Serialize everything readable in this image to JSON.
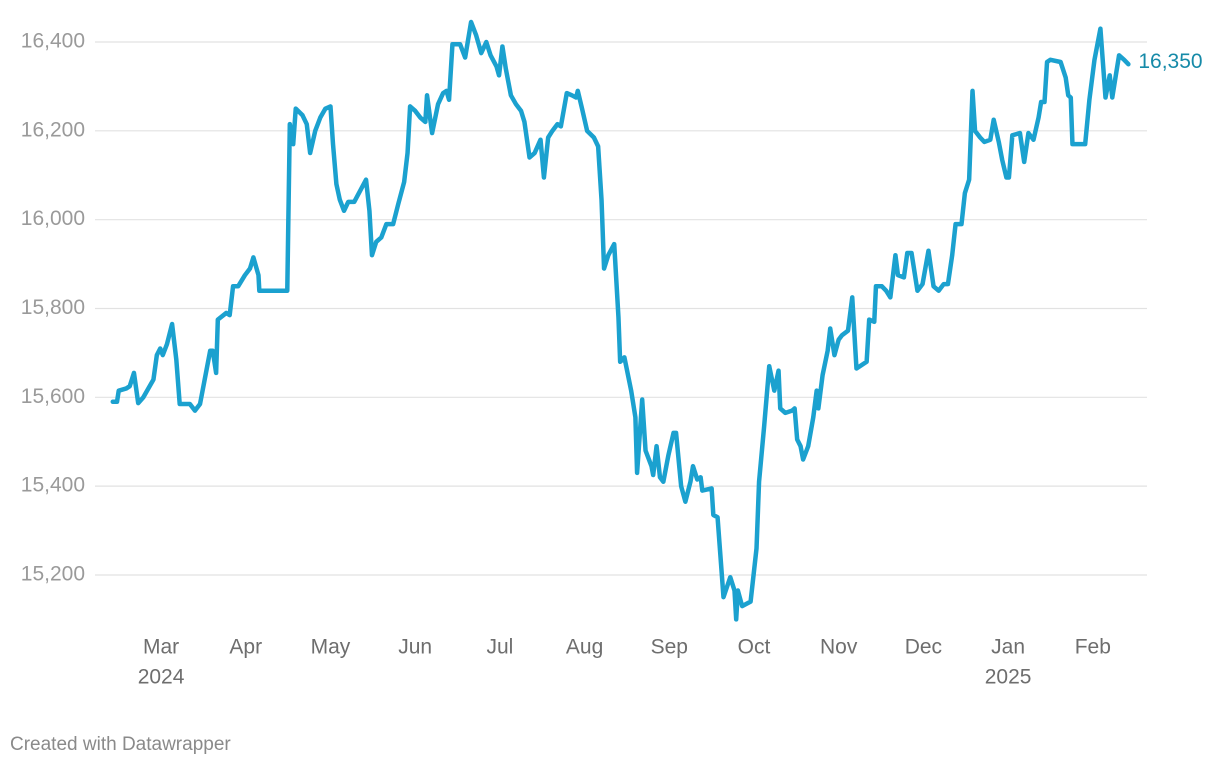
{
  "chart_data": {
    "type": "line",
    "color": "#1ba1cf",
    "end_label_color": "#168aa8",
    "grid": true,
    "footer": "Created with Datawrapper",
    "ylim": [
      15100,
      16450
    ],
    "yticks": [
      {
        "value": 15200,
        "label": "15,200"
      },
      {
        "value": 15400,
        "label": "15,400"
      },
      {
        "value": 15600,
        "label": "15,600"
      },
      {
        "value": 15800,
        "label": "15,800"
      },
      {
        "value": 16000,
        "label": "16,000"
      },
      {
        "value": 16200,
        "label": "16,200"
      },
      {
        "value": 16400,
        "label": "16,400"
      }
    ],
    "xlim": [
      1.22,
      13.64
    ],
    "xticks": [
      {
        "value": 2,
        "label": "Mar"
      },
      {
        "value": 3,
        "label": "Apr"
      },
      {
        "value": 4,
        "label": "May"
      },
      {
        "value": 5,
        "label": "Jun"
      },
      {
        "value": 6,
        "label": "Jul"
      },
      {
        "value": 7,
        "label": "Aug"
      },
      {
        "value": 8,
        "label": "Sep"
      },
      {
        "value": 9,
        "label": "Oct"
      },
      {
        "value": 10,
        "label": "Nov"
      },
      {
        "value": 11,
        "label": "Dec"
      },
      {
        "value": 12,
        "label": "Jan"
      },
      {
        "value": 13,
        "label": "Feb"
      }
    ],
    "year_labels": [
      {
        "value": 2,
        "label": "2024"
      },
      {
        "value": 12,
        "label": "2025"
      }
    ],
    "end_label": "16,350",
    "x": [
      1.43,
      1.48,
      1.5,
      1.59,
      1.63,
      1.68,
      1.73,
      1.79,
      1.91,
      1.95,
      1.99,
      2.02,
      2.07,
      2.13,
      2.18,
      2.22,
      2.34,
      2.4,
      2.46,
      2.58,
      2.61,
      2.65,
      2.67,
      2.77,
      2.81,
      2.85,
      2.91,
      2.99,
      3.05,
      3.09,
      3.15,
      3.16,
      3.49,
      3.52,
      3.56,
      3.59,
      3.67,
      3.72,
      3.76,
      3.82,
      3.88,
      3.94,
      4.0,
      4.03,
      4.07,
      4.11,
      4.16,
      4.21,
      4.28,
      4.35,
      4.42,
      4.46,
      4.49,
      4.54,
      4.6,
      4.66,
      4.74,
      4.8,
      4.87,
      4.91,
      4.94,
      5.0,
      5.06,
      5.12,
      5.14,
      5.2,
      5.27,
      5.33,
      5.37,
      5.4,
      5.44,
      5.53,
      5.59,
      5.66,
      5.72,
      5.78,
      5.84,
      5.89,
      5.96,
      5.99,
      6.03,
      6.07,
      6.13,
      6.19,
      6.25,
      6.29,
      6.35,
      6.41,
      6.48,
      6.52,
      6.57,
      6.62,
      6.68,
      6.72,
      6.79,
      6.85,
      6.9,
      6.92,
      6.97,
      7.03,
      7.11,
      7.16,
      7.2,
      7.23,
      7.28,
      7.35,
      7.4,
      7.42,
      7.47,
      7.55,
      7.6,
      7.62,
      7.68,
      7.72,
      7.79,
      7.81,
      7.85,
      7.89,
      7.93,
      7.99,
      8.05,
      8.08,
      8.14,
      8.19,
      8.25,
      8.28,
      8.33,
      8.37,
      8.39,
      8.5,
      8.52,
      8.57,
      8.64,
      8.72,
      8.77,
      8.79,
      8.81,
      8.86,
      8.96,
      9.03,
      9.06,
      9.12,
      9.18,
      9.24,
      9.29,
      9.31,
      9.37,
      9.45,
      9.48,
      9.51,
      9.55,
      9.58,
      9.64,
      9.7,
      9.74,
      9.76,
      9.81,
      9.87,
      9.9,
      9.95,
      10.0,
      10.04,
      10.11,
      10.16,
      10.21,
      10.33,
      10.36,
      10.42,
      10.44,
      10.51,
      10.56,
      10.61,
      10.67,
      10.7,
      10.77,
      10.81,
      10.86,
      10.93,
      10.99,
      11.06,
      11.12,
      11.18,
      11.24,
      11.29,
      11.34,
      11.38,
      11.45,
      11.49,
      11.54,
      11.58,
      11.61,
      11.67,
      11.72,
      11.79,
      11.83,
      11.89,
      11.93,
      11.98,
      12.01,
      12.05,
      12.14,
      12.19,
      12.24,
      12.3,
      12.36,
      12.39,
      12.43,
      12.46,
      12.5,
      12.62,
      12.68,
      12.71,
      12.74,
      12.76,
      12.91,
      12.96,
      13.02,
      13.09,
      13.15,
      13.2,
      13.23,
      13.31,
      13.37,
      13.42
    ],
    "values": [
      15590,
      15590,
      15615,
      15620,
      15625,
      15655,
      15587,
      15600,
      15640,
      15695,
      15710,
      15695,
      15720,
      15765,
      15685,
      15585,
      15585,
      15570,
      15585,
      15705,
      15705,
      15655,
      15775,
      15790,
      15785,
      15850,
      15850,
      15875,
      15890,
      15915,
      15875,
      15840,
      15840,
      16215,
      16170,
      16250,
      16235,
      16215,
      16150,
      16200,
      16230,
      16250,
      16255,
      16170,
      16080,
      16045,
      16020,
      16040,
      16040,
      16065,
      16090,
      16020,
      15920,
      15950,
      15960,
      15990,
      15990,
      16035,
      16085,
      16150,
      16255,
      16245,
      16230,
      16220,
      16280,
      16195,
      16260,
      16285,
      16290,
      16270,
      16395,
      16395,
      16365,
      16445,
      16415,
      16375,
      16400,
      16370,
      16345,
      16325,
      16390,
      16340,
      16280,
      16260,
      16245,
      16220,
      16140,
      16150,
      16180,
      16095,
      16185,
      16200,
      16215,
      16210,
      16285,
      16280,
      16275,
      16290,
      16250,
      16200,
      16185,
      16165,
      16045,
      15890,
      15920,
      15945,
      15780,
      15680,
      15690,
      15615,
      15555,
      15430,
      15595,
      15480,
      15445,
      15425,
      15490,
      15420,
      15410,
      15470,
      15520,
      15520,
      15400,
      15365,
      15410,
      15445,
      15415,
      15420,
      15390,
      15395,
      15335,
      15330,
      15150,
      15195,
      15165,
      15100,
      15165,
      15130,
      15140,
      15260,
      15410,
      15535,
      15670,
      15615,
      15660,
      15575,
      15565,
      15570,
      15575,
      15505,
      15490,
      15460,
      15490,
      15555,
      15615,
      15575,
      15650,
      15705,
      15755,
      15695,
      15730,
      15740,
      15750,
      15825,
      15665,
      15680,
      15775,
      15770,
      15850,
      15850,
      15840,
      15825,
      15920,
      15875,
      15870,
      15925,
      15925,
      15840,
      15855,
      15930,
      15850,
      15840,
      15855,
      15855,
      15920,
      15990,
      15990,
      16060,
      16090,
      16290,
      16200,
      16185,
      16175,
      16180,
      16225,
      16175,
      16135,
      16095,
      16095,
      16190,
      16195,
      16130,
      16195,
      16180,
      16230,
      16265,
      16265,
      16355,
      16360,
      16355,
      16320,
      16280,
      16275,
      16170,
      16170,
      16270,
      16360,
      16430,
      16275,
      16325,
      16275,
      16370,
      16360,
      16350
    ]
  }
}
